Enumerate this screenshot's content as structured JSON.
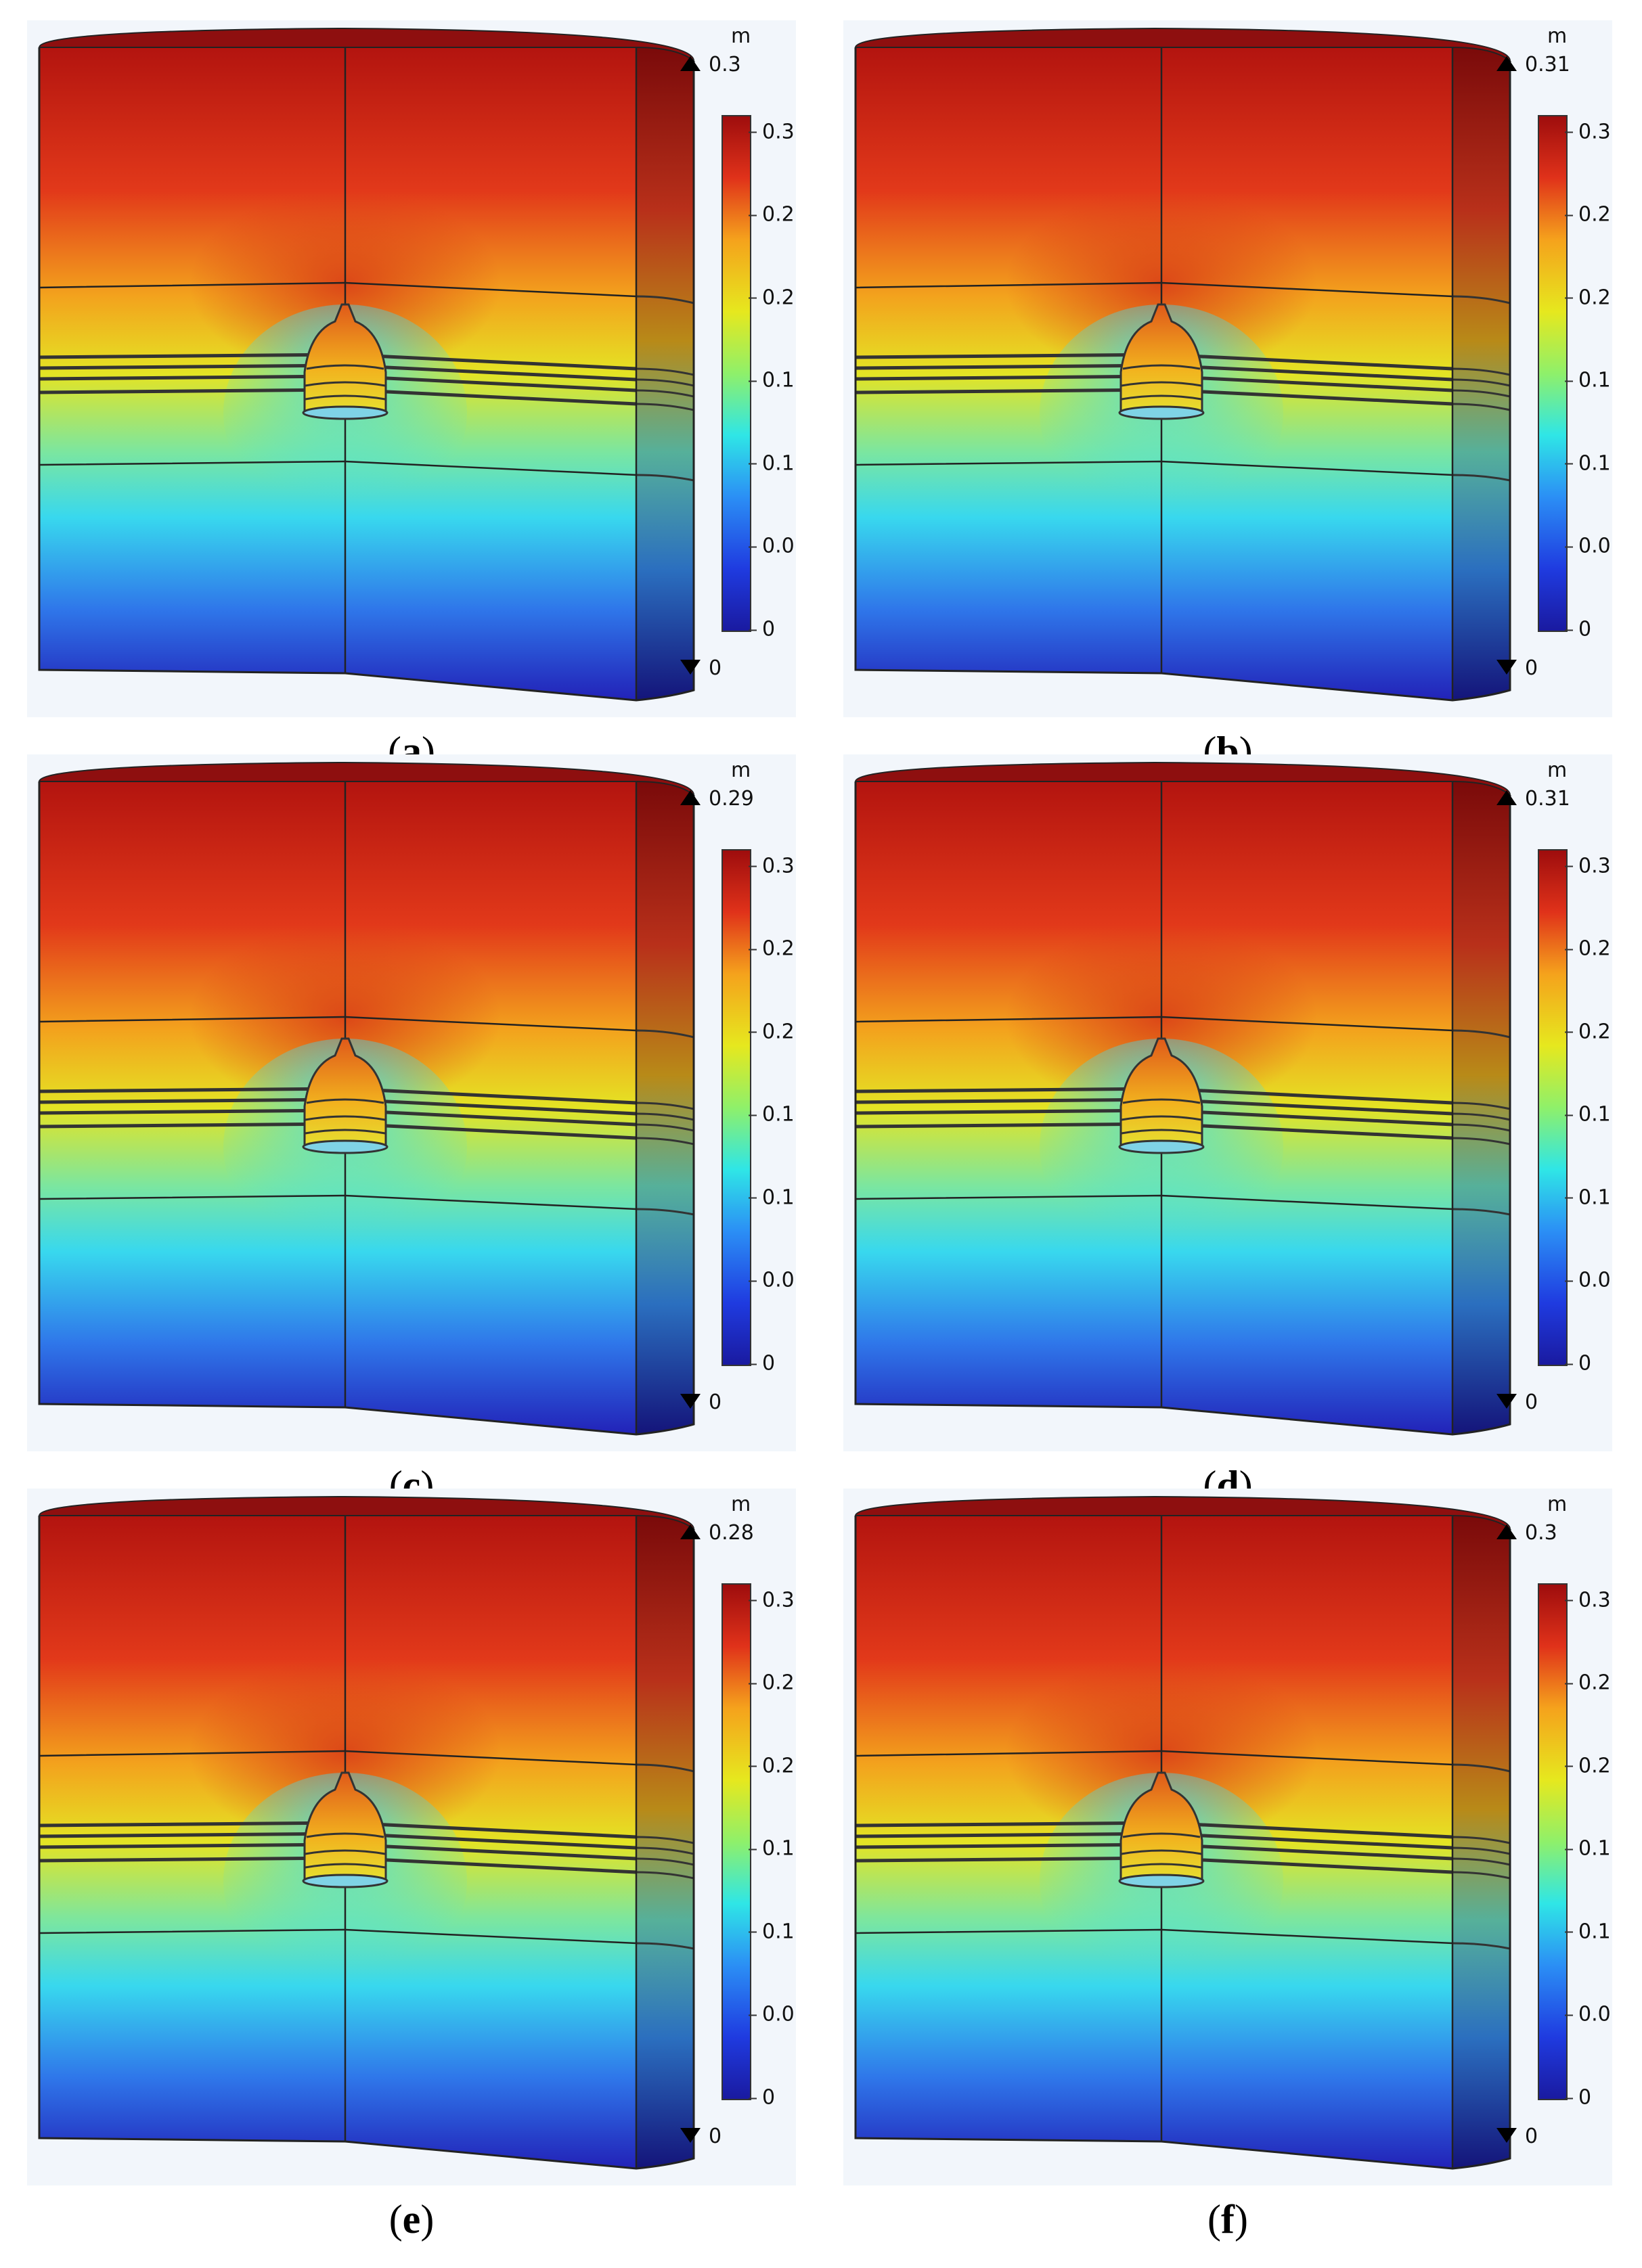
{
  "panels": [
    {
      "id": "a",
      "label": "a",
      "unit": "m",
      "max_label": "0.3",
      "min_label": "0"
    },
    {
      "id": "b",
      "label": "b",
      "unit": "m",
      "max_label": "0.31",
      "min_label": "0"
    },
    {
      "id": "c",
      "label": "c",
      "unit": "m",
      "max_label": "0.29",
      "min_label": "0"
    },
    {
      "id": "d",
      "label": "d",
      "unit": "m",
      "max_label": "0.31",
      "min_label": "0"
    },
    {
      "id": "e",
      "label": "e",
      "unit": "m",
      "max_label": "0.28",
      "min_label": "0"
    },
    {
      "id": "f",
      "label": "f",
      "unit": "m",
      "max_label": "0.3",
      "min_label": "0"
    }
  ],
  "colorbar_ticks": [
    "0",
    "0.05",
    "0.1",
    "0.15",
    "0.2",
    "0.25",
    "0.3"
  ],
  "colorbar_range": [
    0,
    0.31
  ],
  "colors": {
    "top": "#9e0d0d",
    "high": "#e0321a",
    "mid_high": "#f5a21c",
    "mid": "#e6e81e",
    "mid_low": "#2fe6e6",
    "low": "#2b8ff5",
    "bottom": "#1a1aa0",
    "background": "#f2f6fb"
  }
}
